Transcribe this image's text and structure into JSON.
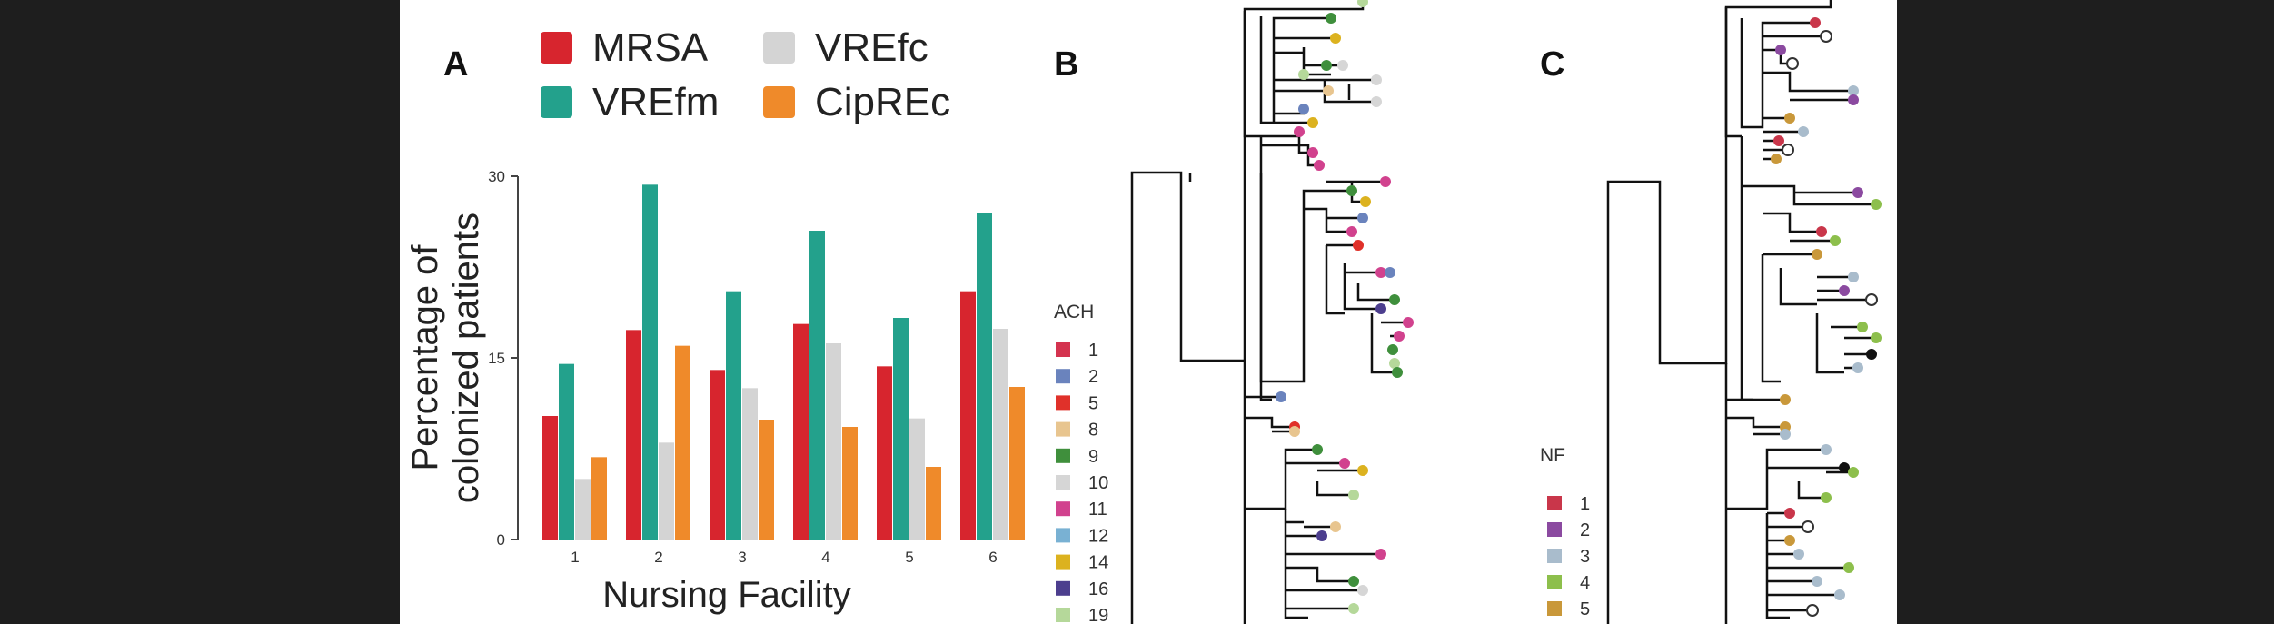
{
  "colors": {
    "MRSA": "#d7252e",
    "VREfm": "#23a18c",
    "VREfc": "#d4d4d4",
    "CipREc": "#ef8a2a"
  },
  "panels": {
    "a": "A",
    "b": "B",
    "c": "C"
  },
  "chart_data": {
    "type": "bar",
    "categories": [
      "1",
      "2",
      "3",
      "4",
      "5",
      "6"
    ],
    "series": [
      {
        "name": "MRSA",
        "values": [
          10.2,
          17.3,
          14.0,
          17.8,
          14.3,
          20.5
        ]
      },
      {
        "name": "VREfm",
        "values": [
          14.5,
          29.3,
          20.5,
          25.5,
          18.3,
          27.0
        ]
      },
      {
        "name": "VREfc",
        "values": [
          5.0,
          8.0,
          12.5,
          16.2,
          10.0,
          17.4
        ]
      },
      {
        "name": "CipREc",
        "values": [
          6.8,
          16.0,
          9.9,
          9.3,
          6.0,
          12.6
        ]
      }
    ],
    "yticks": [
      "0",
      "15",
      "30"
    ],
    "ylim": [
      0,
      30
    ],
    "ylabel_line1": "Percentage of",
    "ylabel_line2": "colonized patients",
    "xlabel": "Nursing Facility",
    "legend_position": "top"
  },
  "tree_b_legend": {
    "title": "ACH",
    "items": [
      {
        "label": "1",
        "color": "#d4334f"
      },
      {
        "label": "2",
        "color": "#6a83bd"
      },
      {
        "label": "5",
        "color": "#e0312a"
      },
      {
        "label": "8",
        "color": "#e8c58f"
      },
      {
        "label": "9",
        "color": "#3f8f3c"
      },
      {
        "label": "10",
        "color": "#d6d6d6"
      },
      {
        "label": "11",
        "color": "#d1428e"
      },
      {
        "label": "12",
        "color": "#79b1d3"
      },
      {
        "label": "14",
        "color": "#dcb21f"
      },
      {
        "label": "16",
        "color": "#4c3e8e"
      },
      {
        "label": "19",
        "color": "#b5d89a"
      }
    ]
  },
  "tree_c_legend": {
    "title": "NF",
    "items": [
      {
        "label": "1",
        "color": "#c9364a"
      },
      {
        "label": "2",
        "color": "#8b4aa0"
      },
      {
        "label": "3",
        "color": "#a9bccc"
      },
      {
        "label": "4",
        "color": "#8dbf4c"
      },
      {
        "label": "5",
        "color": "#c9983a"
      }
    ]
  }
}
